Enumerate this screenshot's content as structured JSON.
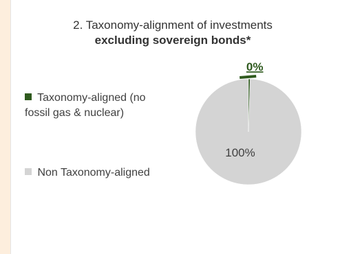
{
  "chart_data": {
    "type": "pie",
    "title_line1": "2. Taxonomy-alignment of investments",
    "title_line2": "excluding sovereign bonds*",
    "slices": [
      {
        "name": "Taxonomy-aligned (no fossil gas & nuclear)",
        "legend_line1": "Taxonomy-aligned (no",
        "legend_line2": "fossil gas & nuclear)",
        "value": 0.5,
        "label": "0%",
        "color": "#2f5a1e"
      },
      {
        "name": "Non Taxonomy-aligned",
        "legend_line1": "Non Taxonomy-aligned",
        "legend_line2": "",
        "value": 99.5,
        "label": "100%",
        "color": "#d4d4d4"
      }
    ],
    "legend_position": "left"
  }
}
